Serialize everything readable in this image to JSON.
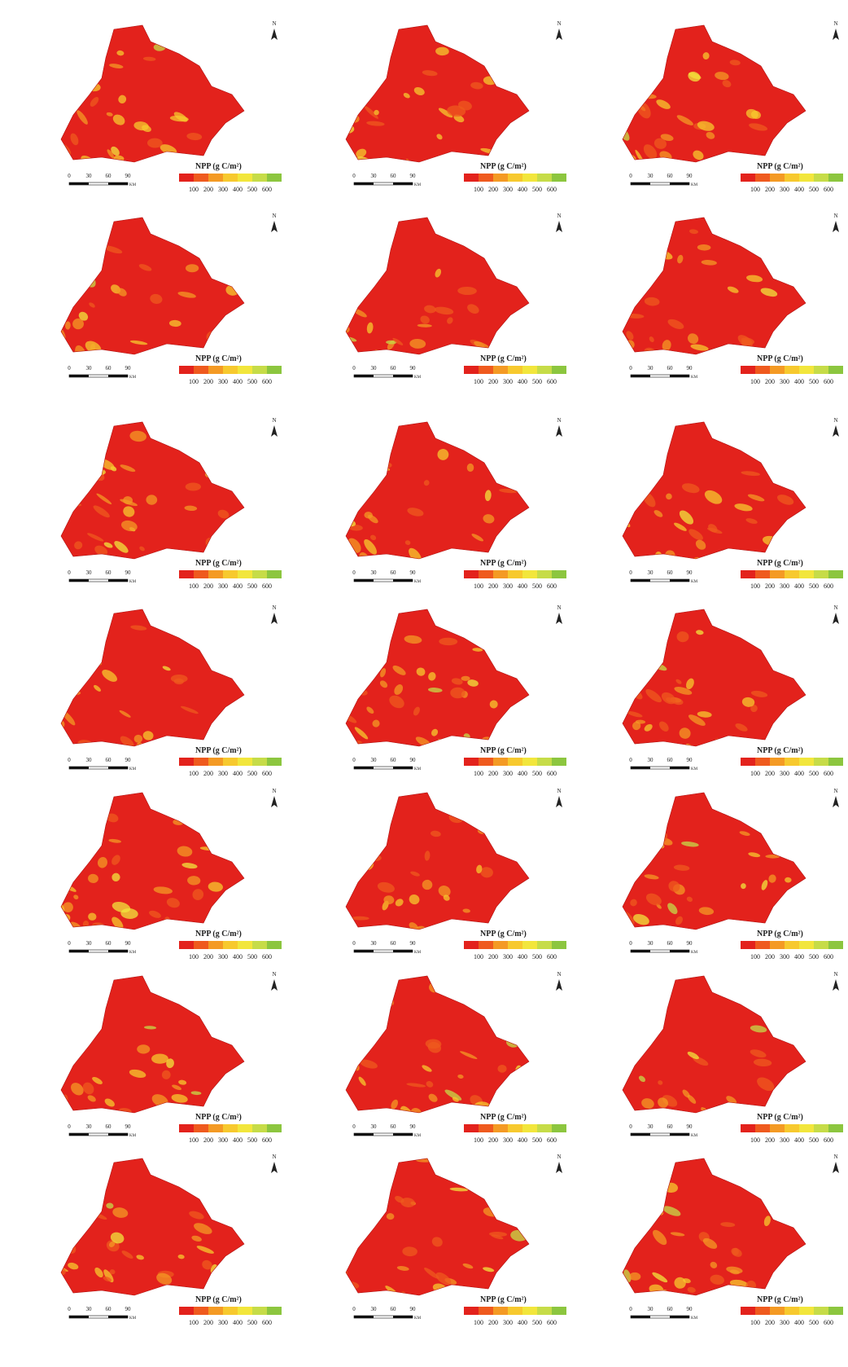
{
  "legend": {
    "title": "NPP (g C/m²)",
    "labels": [
      "100",
      "200",
      "300",
      "400",
      "500",
      "600"
    ],
    "colors": [
      "#e3221c",
      "#ef5a1e",
      "#f49a24",
      "#f7c92e",
      "#f2e63c",
      "#c6dc48",
      "#8cc63f",
      "#4caf50"
    ]
  },
  "scale_bar": {
    "labels": [
      "0",
      "30",
      "60",
      "90"
    ],
    "unit": "KM"
  },
  "north": "N"
}
